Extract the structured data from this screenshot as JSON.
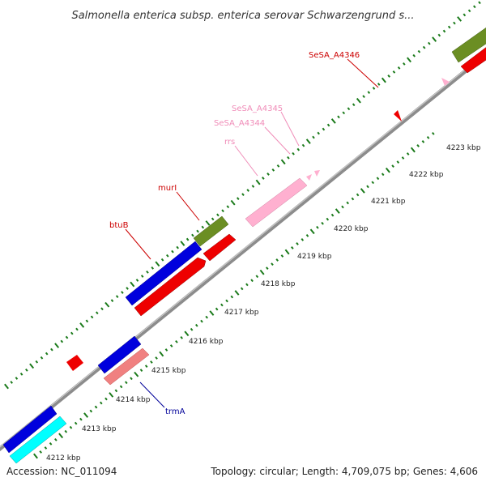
{
  "title": "Salmonella enterica subsp. enterica serovar Schwarzengrund s...",
  "footer": {
    "accession": "Accession: NC_011094",
    "topology": "Topology: circular; Length: 4,709,075 bp; Genes: 4,606"
  },
  "ticks": [
    {
      "label": "4212 kbp"
    },
    {
      "label": "4213 kbp"
    },
    {
      "label": "4214 kbp"
    },
    {
      "label": "4215 kbp"
    },
    {
      "label": "4216 kbp"
    },
    {
      "label": "4217 kbp"
    },
    {
      "label": "4218 kbp"
    },
    {
      "label": "4219 kbp"
    },
    {
      "label": "4220 kbp"
    },
    {
      "label": "4221 kbp"
    },
    {
      "label": "4222 kbp"
    },
    {
      "label": "4223 kbp"
    }
  ],
  "gene_labels": [
    {
      "name": "SeSA_A4346",
      "color": "#cc0000"
    },
    {
      "name": "SeSA_A4345",
      "color": "#f08cb8"
    },
    {
      "name": "SeSA_A4344",
      "color": "#f08cb8"
    },
    {
      "name": "rrs",
      "color": "#f08cb8"
    },
    {
      "name": "murI",
      "color": "#cc0000"
    },
    {
      "name": "btuB",
      "color": "#cc0000"
    },
    {
      "name": "trmA",
      "color": "#000099"
    }
  ],
  "colors": {
    "backbone": "#8c8c8c",
    "tick_dots": "#1a7a1a",
    "blue": "#0000dd",
    "red": "#ee0000",
    "green": "#6b8e23",
    "pink": "#ffb0d0",
    "salmon": "#f08080",
    "cyan": "#00ffff"
  }
}
